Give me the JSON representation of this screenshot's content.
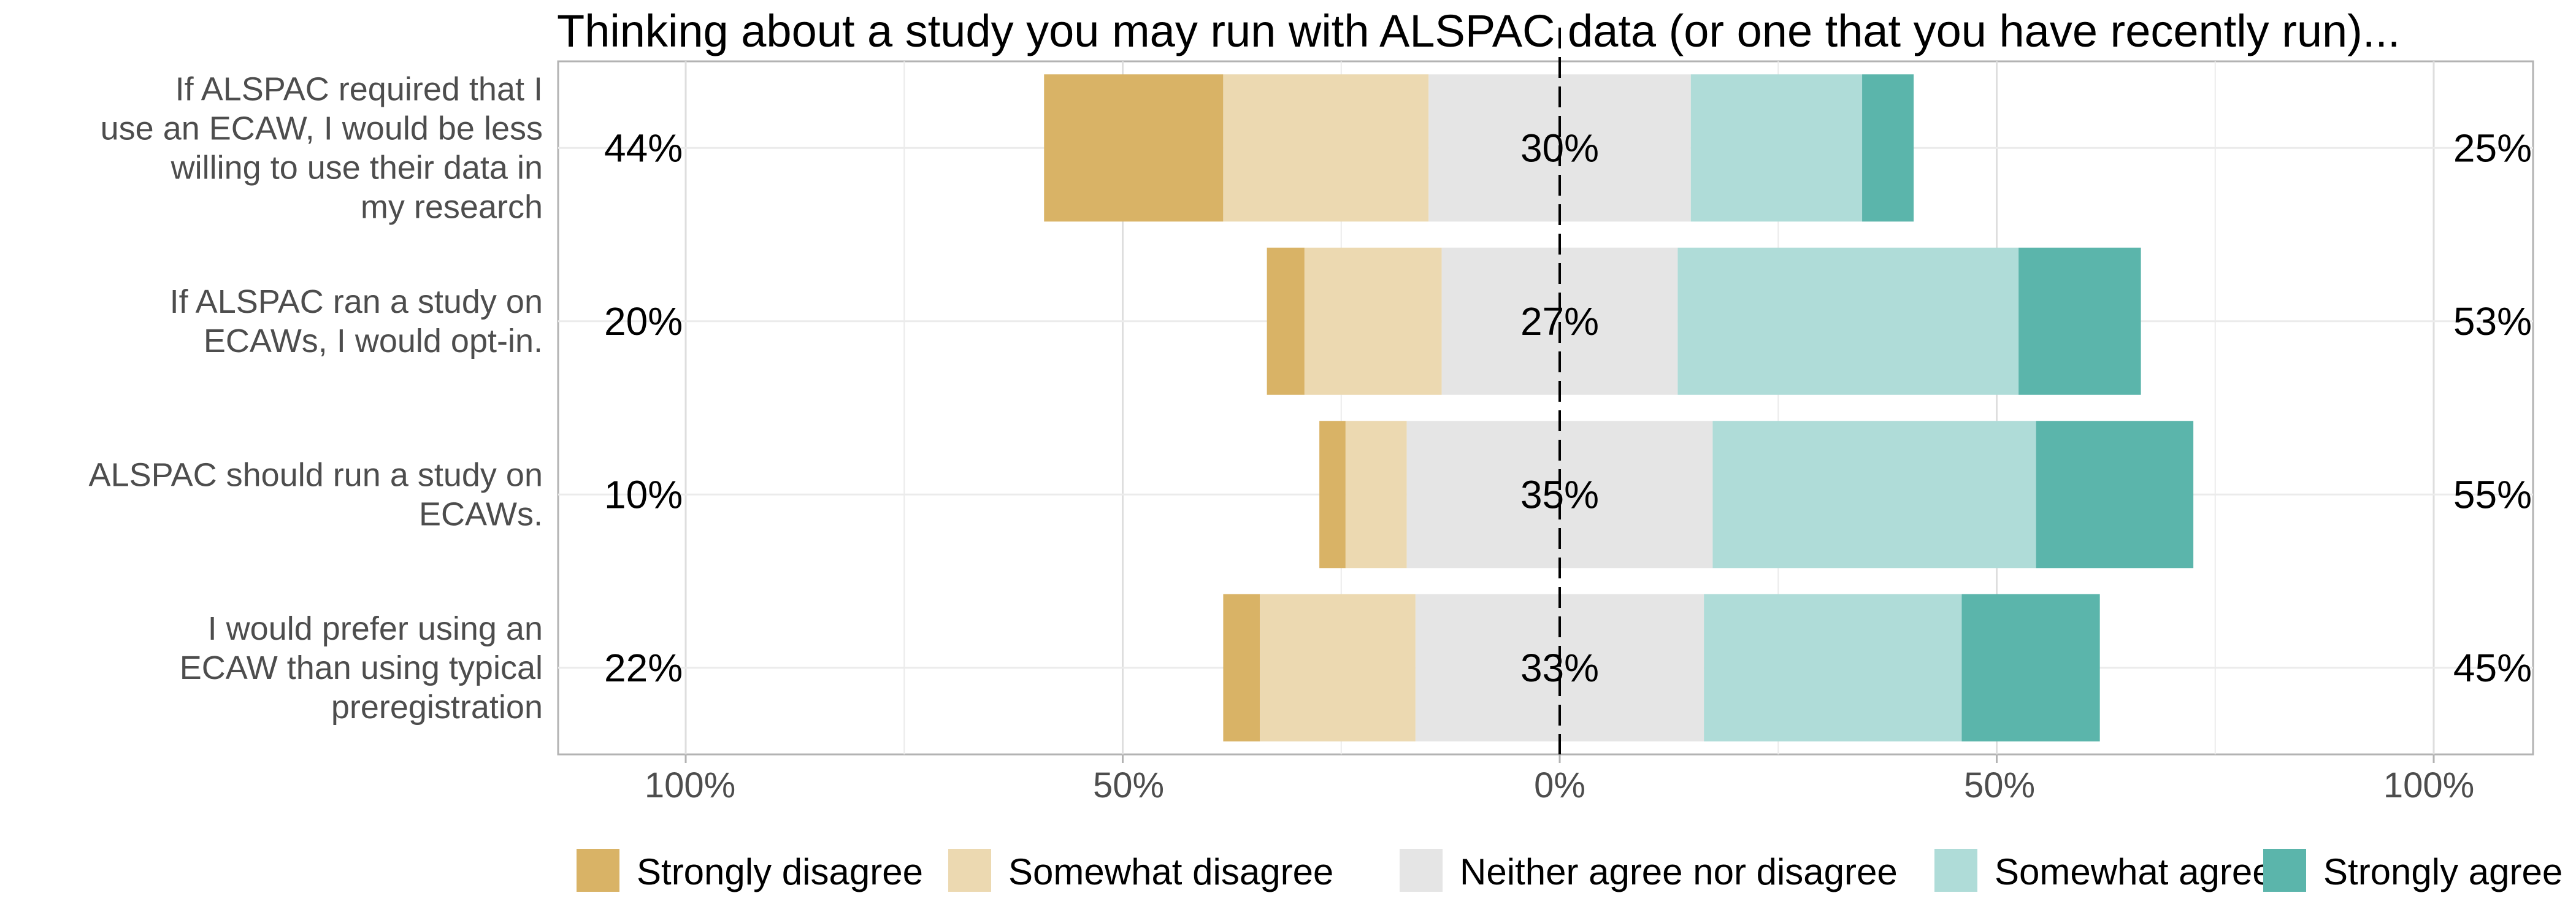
{
  "chart_data": {
    "type": "bar",
    "subtype": "diverging-stacked-likert",
    "title": "Thinking about a study you may run with ALSPAC data (or one that you have recently run)...",
    "xlabel": "",
    "ylabel": "",
    "xlim": [
      -100,
      100
    ],
    "x_ticks": [
      "100%",
      "50%",
      "0%",
      "50%",
      "100%"
    ],
    "grid": true,
    "legend_position": "bottom",
    "levels": [
      "Strongly disagree",
      "Somewhat disagree",
      "Neither agree nor disagree",
      "Somewhat agree",
      "Strongly agree"
    ],
    "colors": [
      "#d9b366",
      "#ecd9b1",
      "#e5e5e5",
      "#afdcd8",
      "#5bb5ab"
    ],
    "categories": [
      [
        "If ALSPAC required that I",
        "use an ECAW, I would be less",
        "willing to use their data in",
        "my research"
      ],
      [
        "If ALSPAC ran a study on",
        "ECAWs, I would opt-in."
      ],
      [
        "ALSPAC should run a study on",
        "ECAWs."
      ],
      [
        "I would prefer using an",
        "ECAW than using typical",
        "preregistration"
      ]
    ],
    "series": [
      {
        "name": "Strongly disagree",
        "values": [
          20.5,
          4.3,
          3.0,
          4.2
        ]
      },
      {
        "name": "Somewhat disagree",
        "values": [
          23.5,
          15.7,
          7.0,
          17.8
        ]
      },
      {
        "name": "Neither agree nor disagree",
        "values": [
          30.0,
          27.0,
          35.0,
          33.0
        ]
      },
      {
        "name": "Somewhat agree",
        "values": [
          19.6,
          39.0,
          37.0,
          29.5
        ]
      },
      {
        "name": "Strongly agree",
        "values": [
          5.9,
          14.0,
          18.0,
          15.8
        ]
      }
    ],
    "left_labels": [
      "44%",
      "20%",
      "10%",
      "22%"
    ],
    "center_labels": [
      "30%",
      "27%",
      "35%",
      "33%"
    ],
    "right_labels": [
      "25%",
      "53%",
      "55%",
      "45%"
    ]
  }
}
